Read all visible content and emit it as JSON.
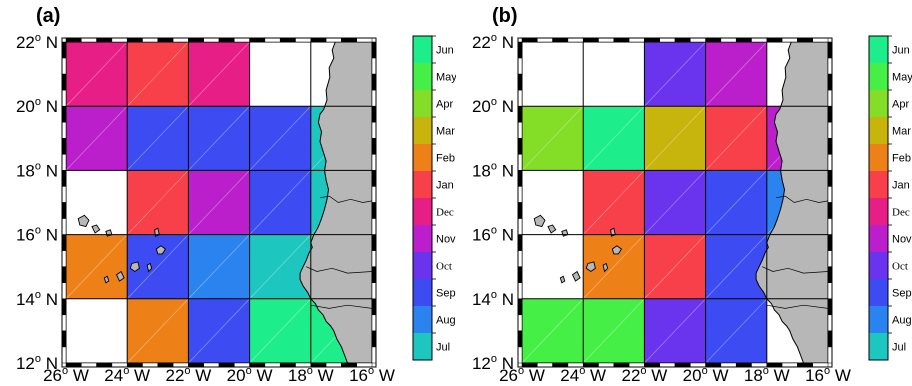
{
  "colors": {
    "Jul": "#1ec6c0",
    "Aug": "#2a83ee",
    "Sep": "#3c4cf2",
    "Oct": "#6a33ee",
    "Nov": "#bb1fcc",
    "Dec": "#e61e86",
    "Jan": "#f7404a",
    "Feb": "#ee8018",
    "Mar": "#c7b40c",
    "Apr": "#84dd26",
    "May": "#46ef46",
    "Jun": "#1eed8c",
    "land": "#b7b7b7",
    "empty": "#ffffff"
  },
  "axes": {
    "lon_ticks": [
      "26",
      "24",
      "22",
      "20",
      "18",
      "16"
    ],
    "lat_ticks": [
      "12",
      "14",
      "16",
      "18",
      "20",
      "22"
    ],
    "lon_suffix": " W",
    "lat_suffix": " N",
    "degree_symbol": "o"
  },
  "colorbar": {
    "labels": [
      "Jul",
      "Aug",
      "Sep",
      "Oct",
      "Nov",
      "Dec",
      "Jan",
      "Feb",
      "Mar",
      "Apr",
      "May",
      "Jun"
    ]
  },
  "panels": [
    {
      "label": "(a)",
      "grid": [
        [
          "Dec",
          "Jan",
          "Dec",
          null,
          null
        ],
        [
          "Nov",
          "Sep",
          "Sep",
          "Sep",
          "Jul"
        ],
        [
          null,
          "Jan",
          "Nov",
          "Sep",
          "Jul"
        ],
        [
          "Feb",
          "Sep",
          "Aug",
          "Jul",
          "May"
        ],
        [
          null,
          "Feb",
          "Sep",
          "Jun",
          "Jun"
        ]
      ]
    },
    {
      "label": "(b)",
      "grid": [
        [
          null,
          null,
          "Oct",
          "Nov",
          null
        ],
        [
          "Apr",
          "Jun",
          "Mar",
          "Jan",
          "Nov"
        ],
        [
          null,
          "Jan",
          "Oct",
          "Sep",
          "Aug"
        ],
        [
          null,
          "Feb",
          "Jan",
          "Sep",
          "Jul"
        ],
        [
          "May",
          "May",
          "Oct",
          "Sep",
          null
        ]
      ]
    }
  ]
}
